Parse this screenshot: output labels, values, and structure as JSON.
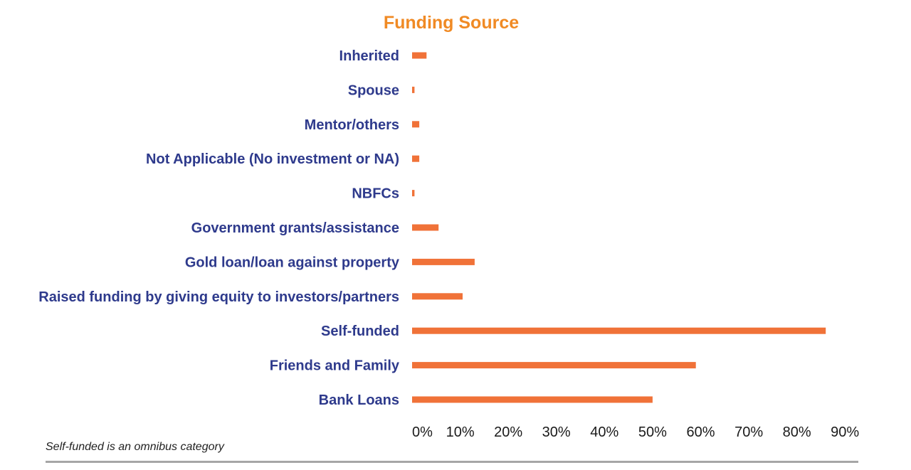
{
  "colors": {
    "title": "#f08a24",
    "label": "#2e3a8c",
    "bar": "#f07238",
    "tick": "#1a1a1a"
  },
  "chart_data": {
    "type": "bar",
    "orientation": "horizontal",
    "title": "Funding Source",
    "xlabel": "",
    "ylabel": "",
    "xlim": [
      0,
      90
    ],
    "x_ticks": [
      "0%",
      "10%",
      "20%",
      "30%",
      "40%",
      "50%",
      "60%",
      "70%",
      "80%",
      "90%"
    ],
    "categories": [
      "Inherited",
      "Spouse",
      "Mentor/others",
      "Not Applicable (No investment or NA)",
      "NBFCs",
      "Government grants/assistance",
      "Gold loan/loan against property",
      "Raised funding by giving equity to investors/partners",
      "Self-funded",
      "Friends and Family",
      "Bank Loans"
    ],
    "values": [
      3,
      0.5,
      1.5,
      1.5,
      0.5,
      5.5,
      13,
      10.5,
      86,
      59,
      50
    ],
    "grid": false,
    "legend": "none"
  },
  "footnote": "Self-funded is an omnibus category"
}
